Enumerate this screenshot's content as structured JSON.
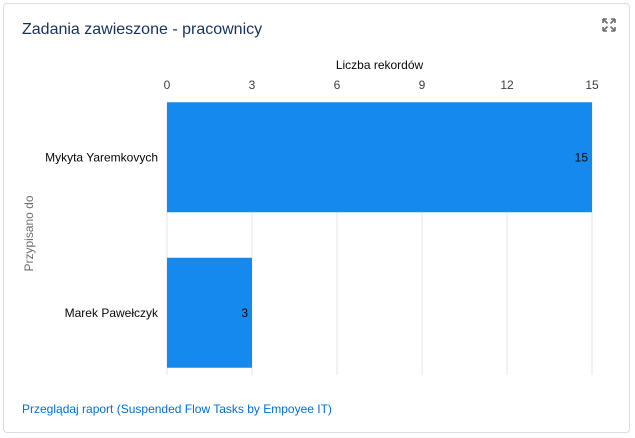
{
  "card": {
    "title": "Zadania zawieszone - pracownicy",
    "expand_icon": "expand-icon",
    "report_link": "Przeglądaj raport (Suspended Flow Tasks by Empoyee IT)"
  },
  "colors": {
    "bar": "#1589ee",
    "title": "#16325c",
    "link": "#0070d2",
    "grid": "#e5e5e5"
  },
  "chart_data": {
    "type": "bar",
    "orientation": "horizontal",
    "xlabel": "Liczba rekordów",
    "ylabel": "Przypisano do",
    "xlim": [
      0,
      15
    ],
    "xticks": [
      0,
      3,
      6,
      9,
      12,
      15
    ],
    "categories": [
      "Mykyta Yaremkovych",
      "Marek Pawełczyk"
    ],
    "values": [
      15,
      3
    ],
    "grid": true,
    "axis_position": "top"
  }
}
